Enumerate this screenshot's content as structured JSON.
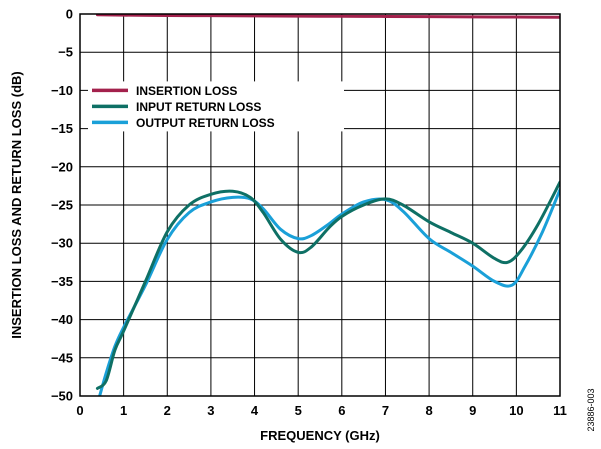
{
  "chart_data": {
    "type": "line",
    "xlabel": "FREQUENCY (GHz)",
    "ylabel": "INSERTION LOSS AND RETURN LOSS (dB)",
    "xlim": [
      0,
      11
    ],
    "ylim": [
      -50,
      0
    ],
    "x_ticks": [
      0,
      1,
      2,
      3,
      4,
      5,
      6,
      7,
      8,
      9,
      10,
      11
    ],
    "y_ticks": [
      0,
      -5,
      -10,
      -15,
      -20,
      -25,
      -30,
      -35,
      -40,
      -45,
      -50
    ],
    "y_tick_labels": [
      "0",
      "−5",
      "−10",
      "−15",
      "−20",
      "−25",
      "−30",
      "−35",
      "−40",
      "−45",
      "−50"
    ],
    "grid": true,
    "legend_position": "upper-left",
    "figure_id": "23886-003",
    "series": [
      {
        "name": "INSERTION LOSS",
        "color": "#a3214c",
        "x": [
          0.4,
          1,
          2,
          3,
          4,
          5,
          6,
          7,
          8,
          9,
          10,
          11
        ],
        "y": [
          -0.1,
          -0.15,
          -0.2,
          -0.22,
          -0.25,
          -0.28,
          -0.3,
          -0.32,
          -0.35,
          -0.38,
          -0.4,
          -0.42
        ]
      },
      {
        "name": "INPUT RETURN LOSS",
        "color": "#0e7065",
        "x": [
          0.4,
          0.6,
          0.8,
          1.0,
          1.5,
          2.0,
          2.5,
          3.0,
          3.5,
          3.9,
          4.2,
          4.6,
          5.0,
          5.3,
          5.7,
          6.0,
          6.5,
          7.0,
          7.4,
          8.0,
          8.5,
          9.0,
          9.5,
          9.8,
          10.1,
          10.5,
          11.0
        ],
        "y": [
          -49,
          -48,
          -44,
          -41.5,
          -35,
          -28.5,
          -25,
          -23.6,
          -23.2,
          -24.0,
          -26.0,
          -29.5,
          -31.2,
          -30.5,
          -28,
          -26.5,
          -25,
          -24.2,
          -25.0,
          -27.2,
          -28.6,
          -30,
          -32,
          -32.5,
          -31.0,
          -27.5,
          -22
        ]
      },
      {
        "name": "OUTPUT RETURN LOSS",
        "color": "#1aa0d8",
        "x": [
          0.45,
          0.6,
          0.8,
          1.0,
          1.5,
          2.0,
          2.5,
          3.0,
          3.5,
          3.9,
          4.2,
          4.6,
          5.0,
          5.3,
          5.7,
          6.0,
          6.5,
          7.0,
          7.4,
          8.0,
          8.5,
          9.0,
          9.5,
          9.9,
          10.2,
          10.6,
          11.0
        ],
        "y": [
          -50,
          -47,
          -43.5,
          -41,
          -35.5,
          -29.5,
          -26,
          -24.6,
          -24.0,
          -24.2,
          -25.5,
          -28.2,
          -29.4,
          -29.0,
          -27.5,
          -26.2,
          -24.6,
          -24.3,
          -25.8,
          -29.4,
          -31.2,
          -33,
          -35,
          -35.5,
          -33.0,
          -28.5,
          -23
        ]
      }
    ]
  }
}
